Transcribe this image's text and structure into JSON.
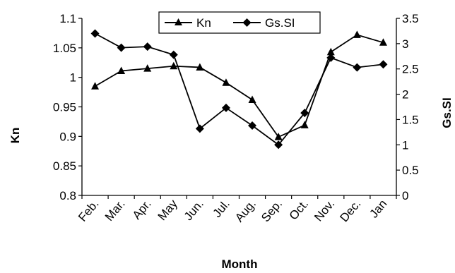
{
  "chart_data": {
    "type": "line",
    "categories": [
      "Feb.",
      "Mar.",
      "Apr.",
      "May",
      "Jun.",
      "Jul.",
      "Aug.",
      "Sep.",
      "Oct.",
      "Nov.",
      "Dec.",
      "Jan"
    ],
    "series": [
      {
        "name": "Kn",
        "axis": "left",
        "marker": "triangle",
        "values": [
          0.985,
          1.011,
          1.015,
          1.019,
          1.017,
          0.991,
          0.962,
          0.899,
          0.919,
          1.043,
          1.072,
          1.059
        ]
      },
      {
        "name": "Gs.SI",
        "axis": "right",
        "marker": "diamond",
        "values": [
          3.2,
          2.92,
          2.94,
          2.78,
          1.32,
          1.73,
          1.38,
          1.0,
          1.63,
          2.72,
          2.53,
          2.59
        ]
      }
    ],
    "xlabel": "Month",
    "ylabel_left": "Kn",
    "ylabel_right": "Gs.SI",
    "ylim_left": [
      0.8,
      1.1
    ],
    "yticks_left": [
      "0.8",
      "0.85",
      "0.9",
      "0.95",
      "1",
      "1.05",
      "1.1"
    ],
    "ylim_right": [
      0,
      3.5
    ],
    "yticks_right": [
      "0",
      "0.5",
      "1",
      "1.5",
      "2",
      "2.5",
      "3",
      "3.5"
    ],
    "grid": false,
    "legend": "top-center",
    "line_color": "#000000"
  }
}
